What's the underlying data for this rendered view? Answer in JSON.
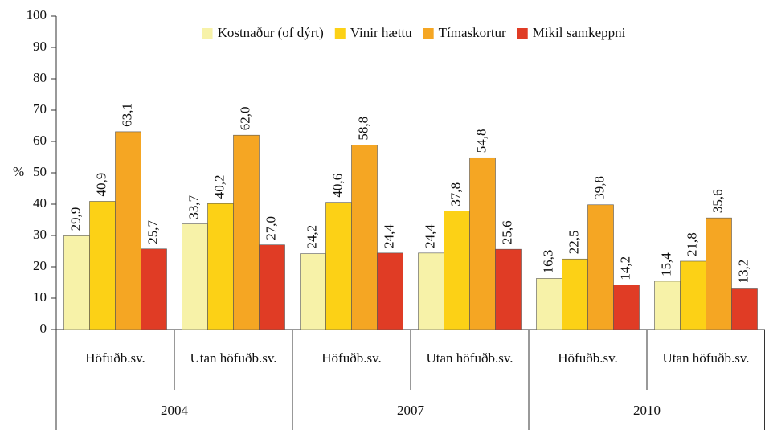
{
  "chart_data": {
    "type": "bar",
    "categories": [
      "Höfuðb.sv.",
      "Utan höfuðb.sv.",
      "Höfuðb.sv.",
      "Utan höfuðb.sv.",
      "Höfuðb.sv.",
      "Utan höfuðb.sv."
    ],
    "category_groups": [
      "2004",
      "2007",
      "2010"
    ],
    "y_label": "%",
    "series": [
      {
        "name": "Kostnaður (of dýrt)",
        "color": "#f7f2a8",
        "values": [
          29.9,
          33.7,
          24.2,
          24.4,
          16.3,
          15.4
        ],
        "value_labels": [
          "29,9",
          "33,7",
          "24,2",
          "24,4",
          "16,3",
          "15,4"
        ]
      },
      {
        "name": "Vinir hættu",
        "color": "#fcd116",
        "values": [
          40.9,
          40.2,
          40.6,
          37.8,
          22.5,
          21.8
        ],
        "value_labels": [
          "40,9",
          "40,2",
          "40,6",
          "37,8",
          "22,5",
          "21,8"
        ]
      },
      {
        "name": "Tímaskortur",
        "color": "#f5a623",
        "values": [
          63.1,
          62.0,
          58.8,
          54.8,
          39.8,
          35.6
        ],
        "value_labels": [
          "63,1",
          "62,0",
          "58,8",
          "54,8",
          "39,8",
          "35,6"
        ]
      },
      {
        "name": "Mikil samkeppni",
        "color": "#e03c25",
        "values": [
          25.7,
          27.0,
          24.4,
          25.6,
          14.2,
          13.2
        ],
        "value_labels": [
          "25,7",
          "27,0",
          "24,4",
          "25,6",
          "14,2",
          "13,2"
        ]
      }
    ],
    "ylim": [
      0,
      100
    ],
    "yticks": [
      0,
      10,
      20,
      30,
      40,
      50,
      60,
      70,
      80,
      90,
      100
    ],
    "legend": "top"
  }
}
